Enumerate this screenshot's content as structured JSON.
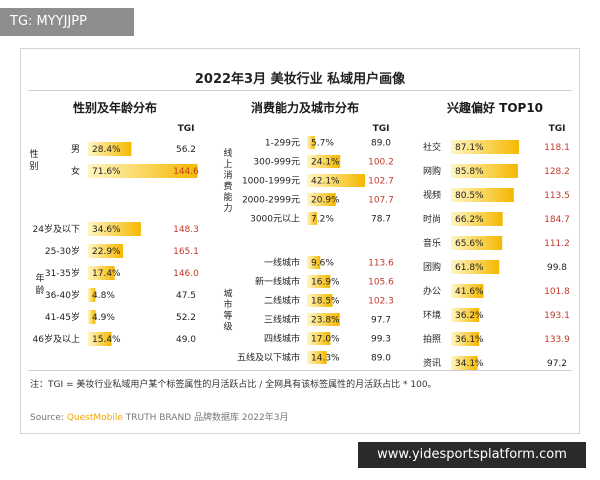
{
  "badge": "TG: MYYJJPP",
  "title": "2022年3月 美妆行业 私域用户画像",
  "panel_titles": [
    "性别及年龄分布",
    "消费能力及城市分布",
    "兴趣偏好 TOP10"
  ],
  "tgi_label": "TGI",
  "group_labels": {
    "gender": "性别",
    "age": "年龄",
    "online_consumption": "线上消费能力",
    "city_tier": "城市等级"
  },
  "footnote": "注：TGI = 美妆行业私域用户某个标签属性的月活跃占比 / 全网具有该标签属性的月活跃占比 * 100。",
  "source": {
    "prefix": "Source:",
    "brand": "QuestMobile",
    "rest": "TRUTH BRAND 品牌数据库 2022年3月"
  },
  "watermark_url": "www.yidesportsplatform.com",
  "colors": {
    "bar_start": "#fff6c2",
    "bar_end": "#f5b800",
    "tgi_high": "#c0392b",
    "tgi_normal": "#222222"
  },
  "chart_data": [
    {
      "type": "bar",
      "title": "性别及年龄分布",
      "groups": [
        {
          "label": "性别",
          "categories": [
            "男",
            "女"
          ],
          "values": [
            28.4,
            71.6
          ],
          "tgi": [
            56.2,
            144.6
          ],
          "tgi_text": [
            "56.2",
            "144.6"
          ]
        },
        {
          "label": "年龄",
          "categories": [
            "24岁及以下",
            "25-30岁",
            "31-35岁",
            "36-40岁",
            "41-45岁",
            "46岁及以上"
          ],
          "values": [
            34.6,
            22.9,
            17.4,
            4.8,
            4.9,
            15.4
          ],
          "tgi": [
            148.3,
            165.1,
            146.0,
            47.5,
            52.2,
            49.0
          ],
          "tgi_text": [
            "148.3",
            "165.1",
            "146.0",
            "47.5",
            "52.2",
            "49.0"
          ]
        }
      ]
    },
    {
      "type": "bar",
      "title": "消费能力及城市分布",
      "groups": [
        {
          "label": "线上消费能力",
          "categories": [
            "1-299元",
            "300-999元",
            "1000-1999元",
            "2000-2999元",
            "3000元以上"
          ],
          "values": [
            5.7,
            24.1,
            42.1,
            20.9,
            7.2
          ],
          "tgi": [
            89.0,
            100.2,
            102.7,
            107.7,
            78.7
          ],
          "tgi_text": [
            "89.0",
            "100.2",
            "102.7",
            "107.7",
            "78.7"
          ]
        },
        {
          "label": "城市等级",
          "categories": [
            "一线城市",
            "新一线城市",
            "二线城市",
            "三线城市",
            "四线城市",
            "五线及以下城市"
          ],
          "values": [
            9.6,
            16.9,
            18.5,
            23.8,
            17.0,
            14.3
          ],
          "tgi": [
            113.6,
            105.6,
            102.3,
            97.7,
            99.3,
            89.0
          ],
          "tgi_text": [
            "113.6",
            "105.6",
            "102.3",
            "97.7",
            "99.3",
            "89.0"
          ]
        }
      ]
    },
    {
      "type": "bar",
      "title": "兴趣偏好 TOP10",
      "groups": [
        {
          "label": "",
          "categories": [
            "社交",
            "网购",
            "视频",
            "时尚",
            "音乐",
            "团购",
            "办公",
            "环境",
            "拍照",
            "资讯"
          ],
          "values": [
            87.1,
            85.8,
            80.5,
            66.2,
            65.6,
            61.8,
            41.6,
            36.2,
            36.1,
            34.1
          ],
          "tgi": [
            118.1,
            128.2,
            113.5,
            184.7,
            111.2,
            99.8,
            101.8,
            193.1,
            133.9,
            97.2
          ],
          "tgi_text": [
            "118.1",
            "128.2",
            "113.5",
            "184.7",
            "111.2",
            "99.8",
            "101.8",
            "193.1",
            "133.9",
            "97.2"
          ]
        }
      ]
    }
  ]
}
